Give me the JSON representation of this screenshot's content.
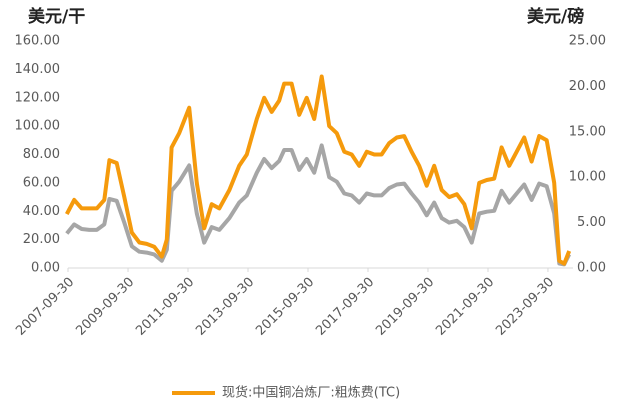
{
  "chart_data": {
    "type": "line",
    "y_label": "美元/干",
    "y2_label": "美元/磅",
    "x": [
      "2007-09",
      "2007-12",
      "2008-03",
      "2008-06",
      "2008-09",
      "2008-12",
      "2009-02",
      "2009-05",
      "2009-08",
      "2009-11",
      "2010-02",
      "2010-05",
      "2010-08",
      "2010-11",
      "2011-01",
      "2011-03",
      "2011-06",
      "2011-10",
      "2012-01",
      "2012-04",
      "2012-07",
      "2012-10",
      "2013-02",
      "2013-06",
      "2013-09",
      "2014-01",
      "2014-04",
      "2014-07",
      "2014-10",
      "2014-12",
      "2015-03",
      "2015-06",
      "2015-09",
      "2015-12",
      "2016-03",
      "2016-06",
      "2016-09",
      "2016-12",
      "2017-03",
      "2017-06",
      "2017-09",
      "2017-12",
      "2018-03",
      "2018-06",
      "2018-09",
      "2018-12",
      "2019-03",
      "2019-06",
      "2019-09",
      "2019-12",
      "2020-03",
      "2020-06",
      "2020-09",
      "2020-12",
      "2021-03",
      "2021-06",
      "2021-09",
      "2021-12",
      "2022-03",
      "2022-06",
      "2022-09",
      "2022-12",
      "2023-03",
      "2023-06",
      "2023-09",
      "2023-12",
      "2024-02",
      "2024-04",
      "2024-06"
    ],
    "series": [
      {
        "name": "现货:中国铜冶炼厂:粗炼费(TC)",
        "color": "#f59a0c",
        "values": [
          38,
          48,
          42,
          42,
          42,
          48,
          76,
          74,
          50,
          25,
          18,
          17,
          15,
          8,
          20,
          85,
          95,
          113,
          60,
          28,
          45,
          42,
          55,
          72,
          80,
          105,
          120,
          110,
          118,
          130,
          130,
          108,
          120,
          105,
          135,
          100,
          95,
          82,
          80,
          72,
          82,
          80,
          80,
          88,
          92,
          93,
          82,
          72,
          58,
          72,
          55,
          50,
          52,
          45,
          28,
          60,
          62,
          63,
          85,
          72,
          82,
          92,
          75,
          93,
          90,
          60,
          5,
          3,
          12
        ]
      },
      {
        "color": "#a6a6a6",
        "axis": "y2",
        "values": [
          3.8,
          4.8,
          4.3,
          4.2,
          4.2,
          4.8,
          7.6,
          7.4,
          5.0,
          2.4,
          1.8,
          1.7,
          1.5,
          0.8,
          2.0,
          8.5,
          9.5,
          11.3,
          6.0,
          2.8,
          4.5,
          4.2,
          5.5,
          7.2,
          8.0,
          10.5,
          12.0,
          11.0,
          11.8,
          13.0,
          13.0,
          10.8,
          12.0,
          10.5,
          13.5,
          10.0,
          9.5,
          8.2,
          8.0,
          7.2,
          8.2,
          8.0,
          8.0,
          8.8,
          9.2,
          9.3,
          8.2,
          7.2,
          5.8,
          7.2,
          5.5,
          5.0,
          5.2,
          4.5,
          2.8,
          6.0,
          6.2,
          6.3,
          8.5,
          7.2,
          8.2,
          9.2,
          7.5,
          9.3,
          9.0,
          6.0,
          0.5,
          0.4,
          1.5
        ]
      }
    ],
    "xlim": [
      "2007-09-30",
      "2024-07-31"
    ],
    "xticks": [
      "2007-09-30",
      "2009-09-30",
      "2011-09-30",
      "2013-09-30",
      "2015-09-30",
      "2017-09-30",
      "2019-09-30",
      "2021-09-30",
      "2023-09-30"
    ],
    "ylim": [
      0,
      160
    ],
    "yticks": [
      {
        "value": 0,
        "label": "0.00"
      },
      {
        "value": 20,
        "label": "20.00"
      },
      {
        "value": 40,
        "label": "40.00"
      },
      {
        "value": 60,
        "label": "60.00"
      },
      {
        "value": 80,
        "label": "80.00"
      },
      {
        "value": 100,
        "label": "100.00"
      },
      {
        "value": 120,
        "label": "120.00"
      },
      {
        "value": 140,
        "label": "140.00"
      },
      {
        "value": 160,
        "label": "160.00"
      }
    ],
    "y2lim": [
      0,
      25
    ],
    "y2ticks": [
      {
        "value": 0,
        "label": "0.00"
      },
      {
        "value": 5,
        "label": "5.00"
      },
      {
        "value": 10,
        "label": "10.00"
      },
      {
        "value": 15,
        "label": "15.00"
      },
      {
        "value": 20,
        "label": "20.00"
      },
      {
        "value": 25,
        "label": "25.00"
      }
    ],
    "legend": "bottom"
  }
}
